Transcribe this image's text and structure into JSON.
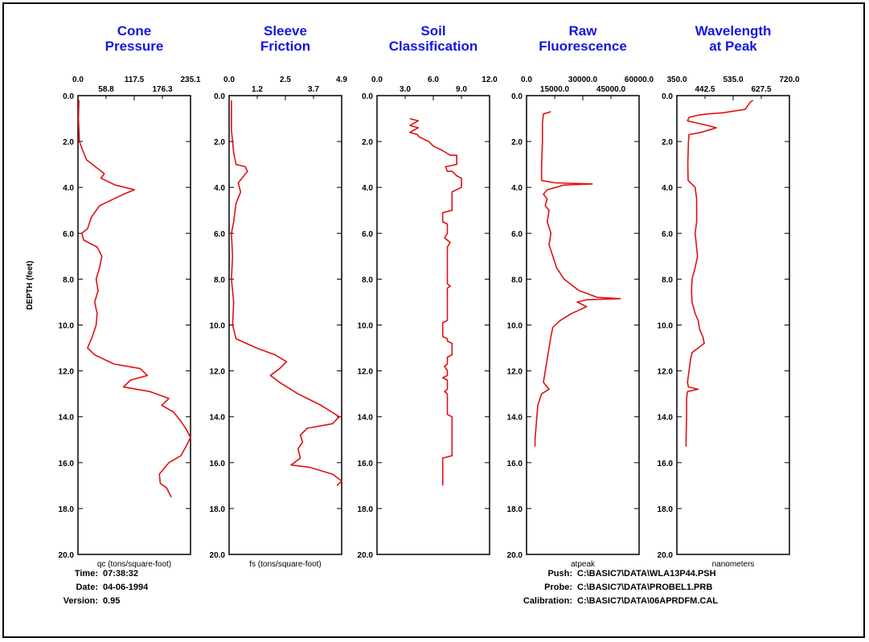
{
  "chart_data": {
    "type": "line",
    "ylabel": "DEPTH (feet)",
    "ylim": [
      0,
      20
    ],
    "depth_ticks": [
      "0.0",
      "2.0",
      "4.0",
      "6.0",
      "8.0",
      "10.0",
      "12.0",
      "14.0",
      "16.0",
      "18.0",
      "20.0"
    ],
    "line_color": "#e01010",
    "title_color": "#1515e0",
    "panels": [
      {
        "title": [
          "Cone",
          "Pressure"
        ],
        "xlim": [
          0,
          235.1
        ],
        "top_ticks": [
          "0.0",
          "117.5",
          "235.1"
        ],
        "sub_ticks": [
          "58.8",
          "176.3"
        ],
        "xlabel": "qc (tons/square-foot)",
        "series": [
          {
            "x": 2,
            "y": 0.2
          },
          {
            "x": 1,
            "y": 1.0
          },
          {
            "x": 3,
            "y": 2.0
          },
          {
            "x": 10,
            "y": 2.4
          },
          {
            "x": 18,
            "y": 2.8
          },
          {
            "x": 30,
            "y": 3.0
          },
          {
            "x": 55,
            "y": 3.4
          },
          {
            "x": 48,
            "y": 3.6
          },
          {
            "x": 78,
            "y": 3.9
          },
          {
            "x": 118,
            "y": 4.1
          },
          {
            "x": 95,
            "y": 4.3
          },
          {
            "x": 45,
            "y": 4.8
          },
          {
            "x": 28,
            "y": 5.3
          },
          {
            "x": 20,
            "y": 5.8
          },
          {
            "x": 8,
            "y": 6.0
          },
          {
            "x": 12,
            "y": 6.3
          },
          {
            "x": 40,
            "y": 6.6
          },
          {
            "x": 50,
            "y": 7.0
          },
          {
            "x": 45,
            "y": 7.5
          },
          {
            "x": 38,
            "y": 8.0
          },
          {
            "x": 42,
            "y": 8.5
          },
          {
            "x": 35,
            "y": 9.0
          },
          {
            "x": 40,
            "y": 9.5
          },
          {
            "x": 38,
            "y": 10.0
          },
          {
            "x": 30,
            "y": 10.5
          },
          {
            "x": 20,
            "y": 11.0
          },
          {
            "x": 35,
            "y": 11.3
          },
          {
            "x": 75,
            "y": 11.7
          },
          {
            "x": 130,
            "y": 11.9
          },
          {
            "x": 145,
            "y": 12.2
          },
          {
            "x": 110,
            "y": 12.4
          },
          {
            "x": 95,
            "y": 12.7
          },
          {
            "x": 150,
            "y": 12.9
          },
          {
            "x": 190,
            "y": 13.2
          },
          {
            "x": 175,
            "y": 13.5
          },
          {
            "x": 200,
            "y": 13.8
          },
          {
            "x": 215,
            "y": 14.2
          },
          {
            "x": 225,
            "y": 14.5
          },
          {
            "x": 235,
            "y": 14.9
          },
          {
            "x": 228,
            "y": 15.2
          },
          {
            "x": 215,
            "y": 15.7
          },
          {
            "x": 190,
            "y": 16.0
          },
          {
            "x": 170,
            "y": 16.5
          },
          {
            "x": 172,
            "y": 16.9
          },
          {
            "x": 185,
            "y": 17.1
          },
          {
            "x": 190,
            "y": 17.3
          },
          {
            "x": 195,
            "y": 17.5
          }
        ]
      },
      {
        "title": [
          "Sleeve",
          "Friction"
        ],
        "xlim": [
          0,
          4.9
        ],
        "top_ticks": [
          "0.0",
          "2.5",
          "4.9"
        ],
        "sub_ticks": [
          "1.2",
          "3.7"
        ],
        "xlabel": "fs (tons/square-foot)",
        "series": [
          {
            "x": 0.1,
            "y": 0.2
          },
          {
            "x": 0.1,
            "y": 1.5
          },
          {
            "x": 0.2,
            "y": 2.5
          },
          {
            "x": 0.3,
            "y": 3.0
          },
          {
            "x": 0.7,
            "y": 3.1
          },
          {
            "x": 0.8,
            "y": 3.3
          },
          {
            "x": 0.4,
            "y": 3.8
          },
          {
            "x": 0.5,
            "y": 4.2
          },
          {
            "x": 0.3,
            "y": 4.7
          },
          {
            "x": 0.2,
            "y": 5.5
          },
          {
            "x": 0.1,
            "y": 6.0
          },
          {
            "x": 0.15,
            "y": 7.0
          },
          {
            "x": 0.1,
            "y": 8.0
          },
          {
            "x": 0.2,
            "y": 9.0
          },
          {
            "x": 0.15,
            "y": 10.0
          },
          {
            "x": 0.3,
            "y": 10.6
          },
          {
            "x": 1.2,
            "y": 11.0
          },
          {
            "x": 2.0,
            "y": 11.3
          },
          {
            "x": 2.5,
            "y": 11.6
          },
          {
            "x": 2.2,
            "y": 11.9
          },
          {
            "x": 1.8,
            "y": 12.2
          },
          {
            "x": 2.2,
            "y": 12.5
          },
          {
            "x": 3.0,
            "y": 13.0
          },
          {
            "x": 4.0,
            "y": 13.5
          },
          {
            "x": 4.8,
            "y": 14.0
          },
          {
            "x": 4.5,
            "y": 14.3
          },
          {
            "x": 3.4,
            "y": 14.5
          },
          {
            "x": 3.1,
            "y": 14.8
          },
          {
            "x": 3.2,
            "y": 15.1
          },
          {
            "x": 3.0,
            "y": 15.4
          },
          {
            "x": 3.1,
            "y": 15.8
          },
          {
            "x": 2.7,
            "y": 16.1
          },
          {
            "x": 3.5,
            "y": 16.2
          },
          {
            "x": 4.5,
            "y": 16.5
          },
          {
            "x": 4.9,
            "y": 16.8
          },
          {
            "x": 4.7,
            "y": 17.0
          }
        ]
      },
      {
        "title": [
          "Soil",
          "Classification"
        ],
        "xlim": [
          0,
          12.0
        ],
        "top_ticks": [
          "0.0",
          "6.0",
          "12.0"
        ],
        "sub_ticks": [
          "3.0",
          "9.0"
        ],
        "xlabel": "",
        "series": [
          {
            "x": 3.5,
            "y": 1.0
          },
          {
            "x": 4.4,
            "y": 1.1
          },
          {
            "x": 3.5,
            "y": 1.3
          },
          {
            "x": 4.4,
            "y": 1.4
          },
          {
            "x": 3.5,
            "y": 1.6
          },
          {
            "x": 4.3,
            "y": 1.7
          },
          {
            "x": 4.5,
            "y": 1.8
          },
          {
            "x": 5.5,
            "y": 2.0
          },
          {
            "x": 6.0,
            "y": 2.2
          },
          {
            "x": 7.0,
            "y": 2.4
          },
          {
            "x": 7.8,
            "y": 2.6
          },
          {
            "x": 8.5,
            "y": 2.6
          },
          {
            "x": 8.5,
            "y": 3.0
          },
          {
            "x": 7.3,
            "y": 3.1
          },
          {
            "x": 7.5,
            "y": 3.3
          },
          {
            "x": 8.0,
            "y": 3.3
          },
          {
            "x": 8.5,
            "y": 3.5
          },
          {
            "x": 9.0,
            "y": 3.6
          },
          {
            "x": 9.0,
            "y": 4.0
          },
          {
            "x": 8.0,
            "y": 4.2
          },
          {
            "x": 8.0,
            "y": 5.0
          },
          {
            "x": 7.0,
            "y": 5.1
          },
          {
            "x": 7.0,
            "y": 5.5
          },
          {
            "x": 7.5,
            "y": 5.6
          },
          {
            "x": 7.5,
            "y": 6.0
          },
          {
            "x": 7.2,
            "y": 6.2
          },
          {
            "x": 7.5,
            "y": 6.3
          },
          {
            "x": 7.8,
            "y": 6.4
          },
          {
            "x": 7.5,
            "y": 6.6
          },
          {
            "x": 7.5,
            "y": 8.2
          },
          {
            "x": 7.8,
            "y": 8.3
          },
          {
            "x": 7.5,
            "y": 8.4
          },
          {
            "x": 7.5,
            "y": 9.8
          },
          {
            "x": 7.0,
            "y": 9.9
          },
          {
            "x": 7.0,
            "y": 10.5
          },
          {
            "x": 7.5,
            "y": 10.6
          },
          {
            "x": 7.5,
            "y": 10.7
          },
          {
            "x": 8.0,
            "y": 10.8
          },
          {
            "x": 8.0,
            "y": 11.3
          },
          {
            "x": 7.5,
            "y": 11.4
          },
          {
            "x": 7.5,
            "y": 11.7
          },
          {
            "x": 7.2,
            "y": 11.8
          },
          {
            "x": 7.5,
            "y": 12.0
          },
          {
            "x": 7.5,
            "y": 12.2
          },
          {
            "x": 7.0,
            "y": 12.3
          },
          {
            "x": 7.5,
            "y": 12.4
          },
          {
            "x": 7.5,
            "y": 12.8
          },
          {
            "x": 7.2,
            "y": 12.9
          },
          {
            "x": 7.5,
            "y": 13.0
          },
          {
            "x": 7.5,
            "y": 13.9
          },
          {
            "x": 8.0,
            "y": 14.0
          },
          {
            "x": 8.0,
            "y": 15.7
          },
          {
            "x": 7.0,
            "y": 15.8
          },
          {
            "x": 7.0,
            "y": 17.0
          }
        ]
      },
      {
        "title": [
          "Raw",
          "Fluorescence"
        ],
        "xlim": [
          0,
          60000.0
        ],
        "top_ticks": [
          "0.0",
          "30000.0",
          "60000.0"
        ],
        "sub_ticks": [
          "15000.0",
          "45000.0"
        ],
        "xlabel": "atpeak",
        "series": [
          {
            "x": 13000,
            "y": 0.7
          },
          {
            "x": 9000,
            "y": 0.8
          },
          {
            "x": 8500,
            "y": 1.2
          },
          {
            "x": 8500,
            "y": 2.0
          },
          {
            "x": 8000,
            "y": 3.0
          },
          {
            "x": 8000,
            "y": 3.7
          },
          {
            "x": 15000,
            "y": 3.8
          },
          {
            "x": 35000,
            "y": 3.85
          },
          {
            "x": 20000,
            "y": 3.9
          },
          {
            "x": 11000,
            "y": 4.1
          },
          {
            "x": 9000,
            "y": 4.3
          },
          {
            "x": 11000,
            "y": 4.5
          },
          {
            "x": 10000,
            "y": 4.8
          },
          {
            "x": 12000,
            "y": 5.0
          },
          {
            "x": 11000,
            "y": 5.5
          },
          {
            "x": 13000,
            "y": 6.0
          },
          {
            "x": 12000,
            "y": 6.5
          },
          {
            "x": 14000,
            "y": 7.0
          },
          {
            "x": 16000,
            "y": 7.5
          },
          {
            "x": 20000,
            "y": 8.0
          },
          {
            "x": 28000,
            "y": 8.5
          },
          {
            "x": 38000,
            "y": 8.8
          },
          {
            "x": 50000,
            "y": 8.85
          },
          {
            "x": 32000,
            "y": 8.9
          },
          {
            "x": 27000,
            "y": 9.0
          },
          {
            "x": 32000,
            "y": 9.2
          },
          {
            "x": 24000,
            "y": 9.5
          },
          {
            "x": 18000,
            "y": 9.8
          },
          {
            "x": 14000,
            "y": 10.1
          },
          {
            "x": 13000,
            "y": 10.5
          },
          {
            "x": 12000,
            "y": 11.0
          },
          {
            "x": 11000,
            "y": 11.5
          },
          {
            "x": 10000,
            "y": 12.0
          },
          {
            "x": 9000,
            "y": 12.5
          },
          {
            "x": 12000,
            "y": 12.8
          },
          {
            "x": 8000,
            "y": 13.0
          },
          {
            "x": 6000,
            "y": 13.5
          },
          {
            "x": 5500,
            "y": 14.0
          },
          {
            "x": 5000,
            "y": 14.5
          },
          {
            "x": 4500,
            "y": 15.0
          },
          {
            "x": 4500,
            "y": 15.3
          }
        ]
      },
      {
        "title": [
          "Wavelength",
          "at Peak"
        ],
        "xlim": [
          350.0,
          720.0
        ],
        "top_ticks": [
          "350.0",
          "535.0",
          "720.0"
        ],
        "sub_ticks": [
          "442.5",
          "627.5"
        ],
        "xlabel": "nanometers",
        "series": [
          {
            "x": 600,
            "y": 0.2
          },
          {
            "x": 590,
            "y": 0.3
          },
          {
            "x": 575,
            "y": 0.6
          },
          {
            "x": 500,
            "y": 0.75
          },
          {
            "x": 450,
            "y": 0.8
          },
          {
            "x": 420,
            "y": 0.85
          },
          {
            "x": 390,
            "y": 0.95
          },
          {
            "x": 385,
            "y": 1.1
          },
          {
            "x": 450,
            "y": 1.3
          },
          {
            "x": 480,
            "y": 1.4
          },
          {
            "x": 430,
            "y": 1.6
          },
          {
            "x": 390,
            "y": 1.7
          },
          {
            "x": 388,
            "y": 2.0
          },
          {
            "x": 386,
            "y": 3.0
          },
          {
            "x": 387,
            "y": 3.7
          },
          {
            "x": 410,
            "y": 4.0
          },
          {
            "x": 415,
            "y": 4.5
          },
          {
            "x": 415,
            "y": 5.5
          },
          {
            "x": 410,
            "y": 6.0
          },
          {
            "x": 418,
            "y": 7.0
          },
          {
            "x": 410,
            "y": 7.5
          },
          {
            "x": 400,
            "y": 8.0
          },
          {
            "x": 398,
            "y": 8.5
          },
          {
            "x": 400,
            "y": 9.0
          },
          {
            "x": 410,
            "y": 9.5
          },
          {
            "x": 420,
            "y": 9.8
          },
          {
            "x": 425,
            "y": 10.2
          },
          {
            "x": 435,
            "y": 10.5
          },
          {
            "x": 440,
            "y": 10.8
          },
          {
            "x": 420,
            "y": 11.0
          },
          {
            "x": 400,
            "y": 11.2
          },
          {
            "x": 395,
            "y": 11.5
          },
          {
            "x": 390,
            "y": 12.0
          },
          {
            "x": 385,
            "y": 12.5
          },
          {
            "x": 388,
            "y": 12.7
          },
          {
            "x": 420,
            "y": 12.8
          },
          {
            "x": 385,
            "y": 12.9
          },
          {
            "x": 382,
            "y": 13.2
          },
          {
            "x": 382,
            "y": 14.0
          },
          {
            "x": 380,
            "y": 15.0
          },
          {
            "x": 380,
            "y": 15.3
          }
        ]
      }
    ]
  },
  "footer_left": {
    "time_label": "Time:",
    "time_value": "07:38:32",
    "date_label": "Date:",
    "date_value": "04-06-1994",
    "version_label": "Version:",
    "version_value": "0.95"
  },
  "footer_right": {
    "push_label": "Push:",
    "push_value": "C:\\BASIC7\\DATA\\WLA13P44.PSH",
    "probe_label": "Probe:",
    "probe_value": "C:\\BASIC7\\DATA\\PROBEL1.PRB",
    "calibration_label": "Calibration:",
    "calibration_value": "C:\\BASIC7\\DATA\\06APRDFM.CAL"
  }
}
